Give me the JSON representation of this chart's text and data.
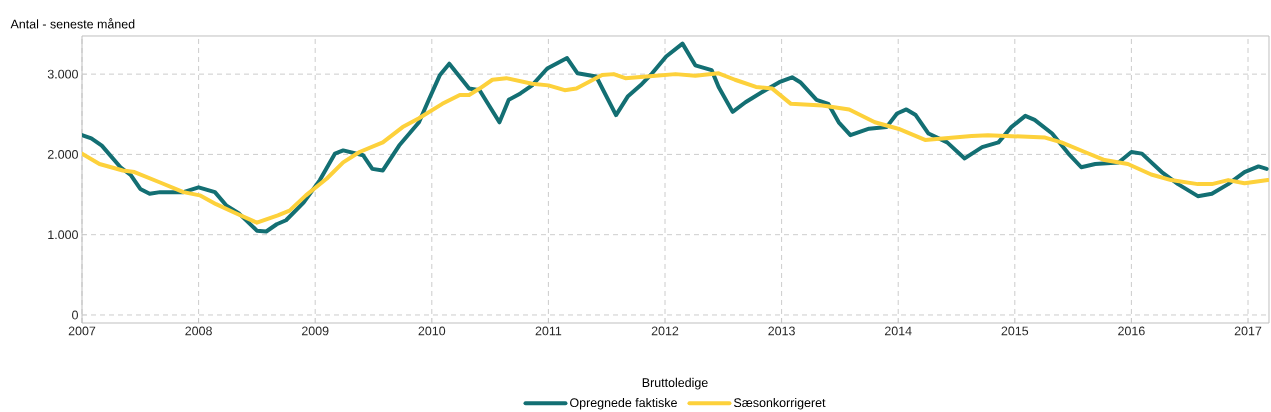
{
  "chart_data": {
    "type": "line",
    "ylabel": "Antal - seneste måned",
    "legend_title": "Bruttoledige",
    "legend": "bottom",
    "grid": true,
    "marker": "none",
    "line_style": "solid",
    "xlim": [
      2007,
      2017.18
    ],
    "xticks": [
      2007,
      2008,
      2009,
      2010,
      2011,
      2012,
      2013,
      2014,
      2015,
      2016,
      2017
    ],
    "ylim": [
      -100,
      3475
    ],
    "yticks": [
      0,
      {
        "value": 1000,
        "label": "1.000"
      },
      {
        "value": 2000,
        "label": "2.000"
      },
      {
        "value": 3000,
        "label": "3.000"
      }
    ],
    "series": [
      {
        "name": "Opregnede faktiske",
        "color": "#136f73",
        "x": [
          2007.0,
          2007.08,
          2007.17,
          2007.33,
          2007.42,
          2007.5,
          2007.58,
          2007.67,
          2007.87,
          2008.0,
          2008.14,
          2008.24,
          2008.35,
          2008.5,
          2008.58,
          2008.67,
          2008.75,
          2008.9,
          2009.04,
          2009.17,
          2009.24,
          2009.41,
          2009.49,
          2009.58,
          2009.72,
          2009.89,
          2009.98,
          2010.07,
          2010.15,
          2010.32,
          2010.41,
          2010.58,
          2010.66,
          2010.76,
          2010.86,
          2010.99,
          2011.16,
          2011.25,
          2011.41,
          2011.58,
          2011.68,
          2011.79,
          2011.89,
          2012.01,
          2012.15,
          2012.26,
          2012.4,
          2012.46,
          2012.58,
          2012.69,
          2012.86,
          2012.98,
          2013.09,
          2013.16,
          2013.3,
          2013.4,
          2013.49,
          2013.59,
          2013.75,
          2013.9,
          2013.99,
          2014.07,
          2014.15,
          2014.26,
          2014.42,
          2014.57,
          2014.72,
          2014.86,
          2014.97,
          2015.09,
          2015.17,
          2015.32,
          2015.46,
          2015.57,
          2015.69,
          2015.89,
          2016.0,
          2016.09,
          2016.26,
          2016.4,
          2016.57,
          2016.69,
          2016.83,
          2016.97,
          2017.09,
          2017.16
        ],
        "values": [
          2240,
          2200,
          2110,
          1840,
          1740,
          1570,
          1510,
          1530,
          1530,
          1590,
          1530,
          1360,
          1260,
          1050,
          1040,
          1130,
          1180,
          1400,
          1680,
          2010,
          2050,
          1990,
          1820,
          1800,
          2110,
          2400,
          2700,
          2990,
          3130,
          2820,
          2800,
          2400,
          2680,
          2760,
          2860,
          3070,
          3200,
          3010,
          2970,
          2490,
          2720,
          2860,
          3010,
          3220,
          3380,
          3110,
          3050,
          2840,
          2530,
          2650,
          2800,
          2900,
          2960,
          2900,
          2680,
          2630,
          2400,
          2240,
          2320,
          2340,
          2510,
          2560,
          2490,
          2260,
          2150,
          1950,
          2090,
          2150,
          2340,
          2480,
          2430,
          2260,
          2010,
          1840,
          1880,
          1900,
          2030,
          2010,
          1780,
          1630,
          1480,
          1510,
          1630,
          1780,
          1850,
          1820
        ]
      },
      {
        "name": "Sæsonkorrigeret",
        "color": "#fdd13b",
        "x": [
          2007.0,
          2007.15,
          2007.35,
          2007.45,
          2007.67,
          2007.87,
          2008.01,
          2008.15,
          2008.3,
          2008.5,
          2008.68,
          2008.78,
          2008.92,
          2009.1,
          2009.24,
          2009.38,
          2009.58,
          2009.75,
          2009.89,
          2010.09,
          2010.24,
          2010.32,
          2010.41,
          2010.52,
          2010.64,
          2010.86,
          2011.0,
          2011.14,
          2011.24,
          2011.46,
          2011.56,
          2011.66,
          2011.92,
          2012.09,
          2012.26,
          2012.46,
          2012.6,
          2012.78,
          2012.92,
          2013.08,
          2013.35,
          2013.58,
          2013.8,
          2014.0,
          2014.23,
          2014.63,
          2014.77,
          2015.26,
          2015.4,
          2015.6,
          2015.77,
          2015.97,
          2016.17,
          2016.34,
          2016.57,
          2016.69,
          2016.83,
          2016.97,
          2017.17
        ],
        "values": [
          2010,
          1880,
          1800,
          1780,
          1650,
          1530,
          1490,
          1380,
          1280,
          1150,
          1240,
          1300,
          1490,
          1700,
          1900,
          2030,
          2150,
          2340,
          2450,
          2630,
          2740,
          2740,
          2820,
          2930,
          2950,
          2880,
          2860,
          2800,
          2820,
          2990,
          3000,
          2950,
          2980,
          3000,
          2980,
          3010,
          2930,
          2840,
          2820,
          2630,
          2610,
          2560,
          2400,
          2320,
          2180,
          2230,
          2240,
          2210,
          2150,
          2030,
          1930,
          1880,
          1750,
          1680,
          1630,
          1630,
          1680,
          1640,
          1680
        ]
      }
    ]
  }
}
